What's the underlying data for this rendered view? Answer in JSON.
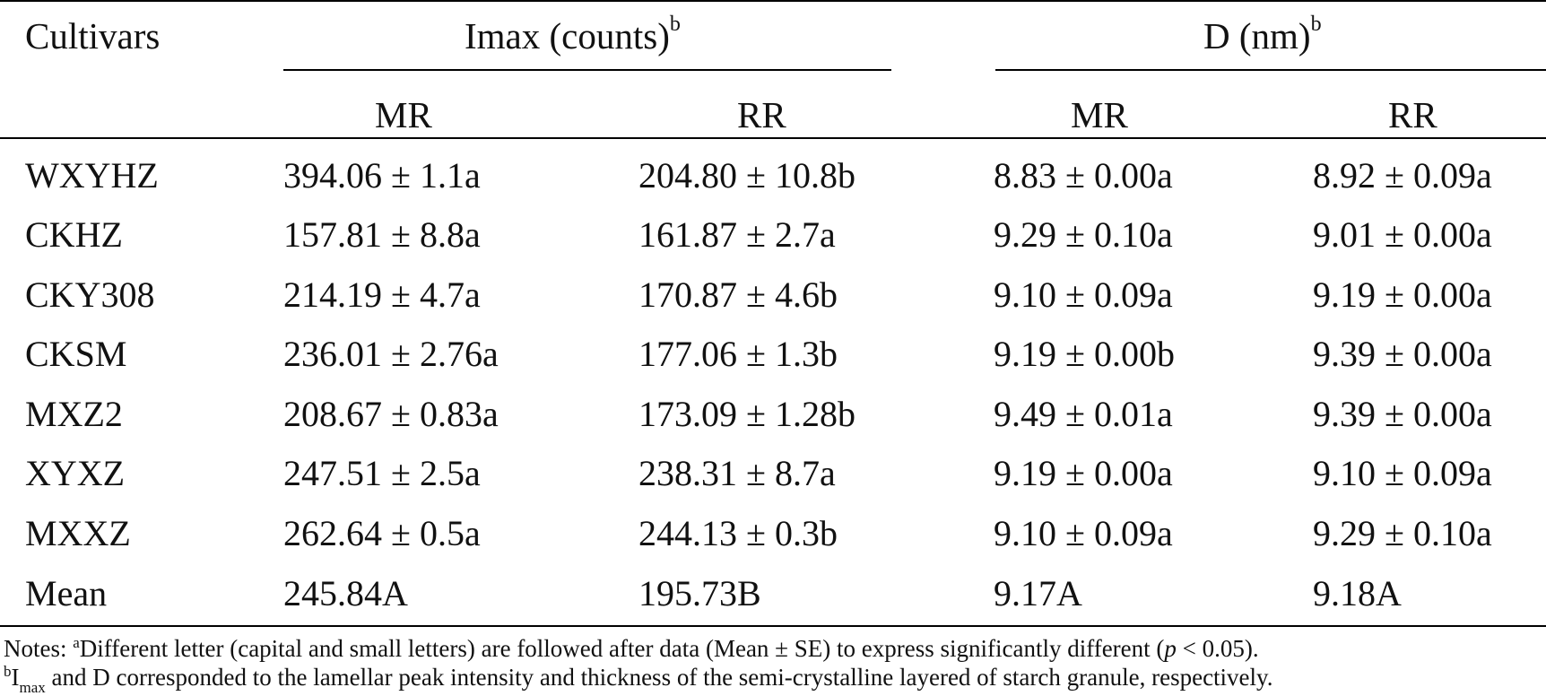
{
  "header": {
    "cultivars": "Cultivars",
    "imax_group": "Imax (counts)",
    "imax_sup": "b",
    "d_group": "D (nm)",
    "d_sup": "b",
    "sub_cols": [
      "MR",
      "RR",
      "MR",
      "RR"
    ]
  },
  "rows": [
    {
      "cultivar": "WXYHZ",
      "imax_mr": "394.06 ± 1.1a",
      "imax_rr": "204.80 ± 10.8b",
      "d_mr": "8.83 ± 0.00a",
      "d_rr": "8.92 ± 0.09a"
    },
    {
      "cultivar": "CKHZ",
      "imax_mr": "157.81 ± 8.8a",
      "imax_rr": "161.87 ± 2.7a",
      "d_mr": "9.29 ± 0.10a",
      "d_rr": "9.01 ± 0.00a"
    },
    {
      "cultivar": "CKY308",
      "imax_mr": "214.19 ± 4.7a",
      "imax_rr": "170.87 ± 4.6b",
      "d_mr": "9.10 ± 0.09a",
      "d_rr": "9.19 ± 0.00a"
    },
    {
      "cultivar": "CKSM",
      "imax_mr": "236.01 ± 2.76a",
      "imax_rr": "177.06 ± 1.3b",
      "d_mr": "9.19 ± 0.00b",
      "d_rr": "9.39 ± 0.00a"
    },
    {
      "cultivar": "MXZ2",
      "imax_mr": "208.67 ± 0.83a",
      "imax_rr": "173.09 ± 1.28b",
      "d_mr": "9.49 ± 0.01a",
      "d_rr": "9.39 ± 0.00a"
    },
    {
      "cultivar": "XYXZ",
      "imax_mr": "247.51 ± 2.5a",
      "imax_rr": "238.31 ± 8.7a",
      "d_mr": "9.19 ± 0.00a",
      "d_rr": "9.10 ± 0.09a"
    },
    {
      "cultivar": "MXXZ",
      "imax_mr": "262.64 ± 0.5a",
      "imax_rr": "244.13 ± 0.3b",
      "d_mr": "9.10 ± 0.09a",
      "d_rr": "9.29 ± 0.10a"
    },
    {
      "cultivar": "Mean",
      "imax_mr": "245.84A",
      "imax_rr": "195.73B",
      "d_mr": "9.17A",
      "d_rr": "9.18A"
    }
  ],
  "notes": {
    "line1_prefix": "Notes: ",
    "line1_sup": "a",
    "line1_text": "Different letter (capital and small letters) are followed after data (Mean ± SE) to express significantly different (",
    "line1_p": "p",
    "line1_end": " < 0.05).",
    "line2_sup": "b",
    "line2_i": "I",
    "line2_sub": "max",
    "line2_text": " and D corresponded to the lamellar peak intensity and thickness of the semi-crystalline layered of starch granule, respectively."
  }
}
